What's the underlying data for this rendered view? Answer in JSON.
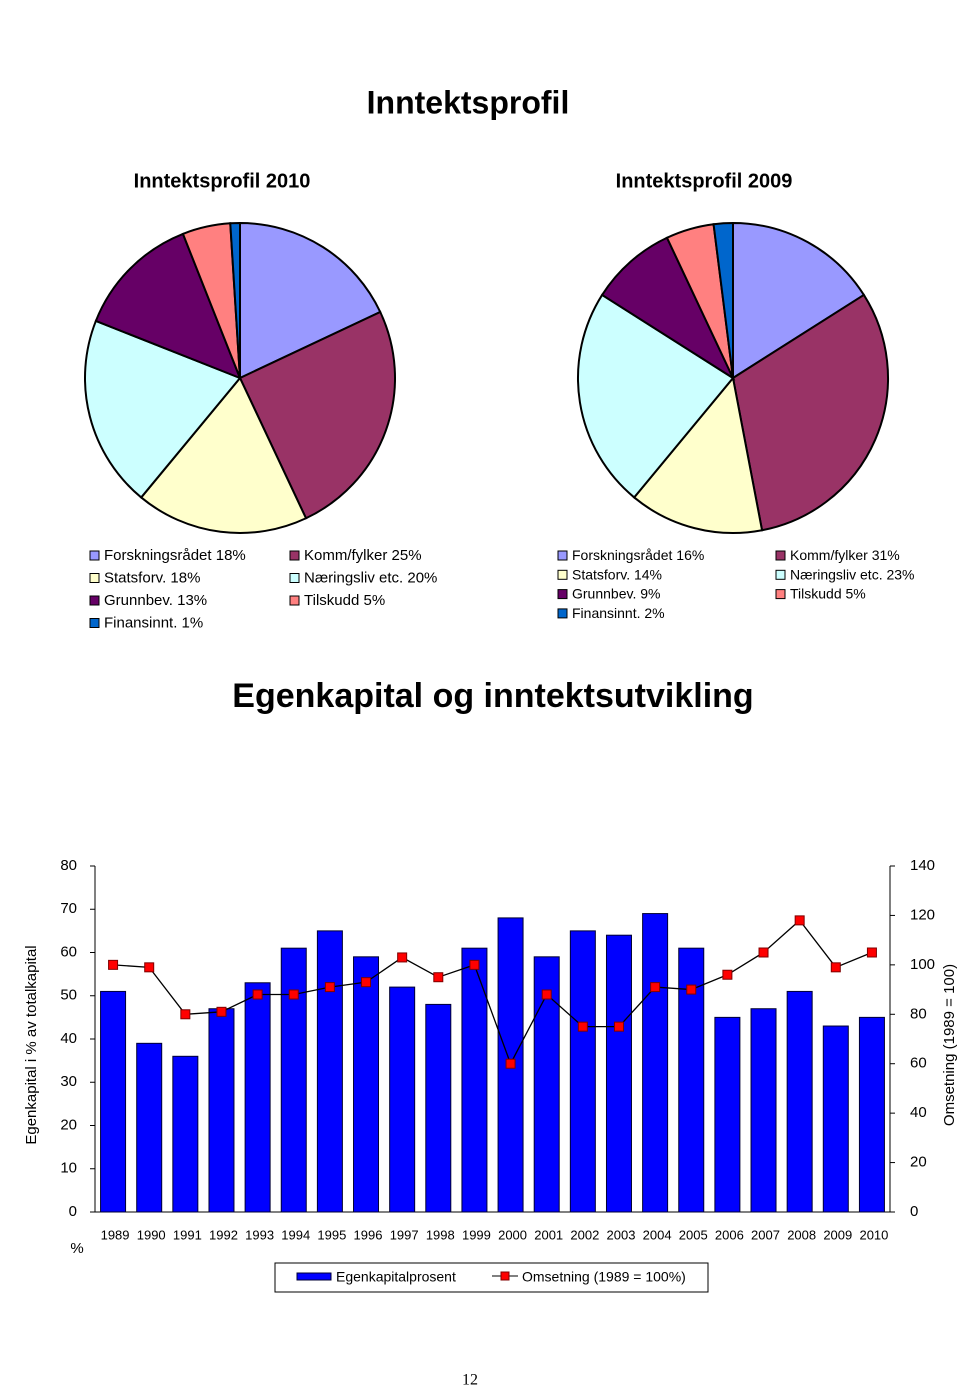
{
  "title": "Inntektsprofil",
  "page_number": "12",
  "chart_data": [
    {
      "type": "pie",
      "title": "Inntektsprofil 2010",
      "categories": [
        "Forskningsrådet",
        "Komm/fylker",
        "Statsforv.",
        "Næringsliv etc.",
        "Grunnbev.",
        "Tilskudd",
        "Finansinnt."
      ],
      "values": [
        18,
        25,
        18,
        20,
        13,
        5,
        1
      ],
      "value_labels": [
        "18%",
        "25%",
        "18%",
        "20%",
        "13%",
        "5%",
        "1%"
      ],
      "colors": [
        "#9999ff",
        "#993366",
        "#ffffcc",
        "#ccffff",
        "#660066",
        "#ff8080",
        "#0066cc"
      ]
    },
    {
      "type": "pie",
      "title": "Inntektsprofil 2009",
      "categories": [
        "Forskningsrådet",
        "Komm/fylker",
        "Statsforv.",
        "Næringsliv etc.",
        "Grunnbev.",
        "Tilskudd",
        "Finansinnt."
      ],
      "values": [
        16,
        31,
        14,
        23,
        9,
        5,
        2
      ],
      "value_labels": [
        "16%",
        "31%",
        "14%",
        "23%",
        "9%",
        "5%",
        "2%"
      ],
      "colors": [
        "#9999ff",
        "#993366",
        "#ffffcc",
        "#ccffff",
        "#660066",
        "#ff8080",
        "#0066cc"
      ]
    },
    {
      "type": "combo",
      "title": "Egenkapital og inntektsutvikling",
      "ylabel": "Egenkapital i % av totalkapital",
      "y_unit": "%",
      "y2label": "Omsetning (1989 = 100)",
      "categories": [
        "1989",
        "1990",
        "1991",
        "1992",
        "1993",
        "1994",
        "1995",
        "1996",
        "1997",
        "1998",
        "1999",
        "2000",
        "2001",
        "2002",
        "2003",
        "2004",
        "2005",
        "2006",
        "2007",
        "2008",
        "2009",
        "2010"
      ],
      "series": [
        {
          "name": "Egenkapitalprosent",
          "kind": "bar",
          "color": "#0000ff",
          "values": [
            51,
            39,
            36,
            47,
            53,
            61,
            65,
            59,
            52,
            48,
            61,
            68,
            59,
            65,
            64,
            69,
            61,
            45,
            47,
            51,
            43,
            45
          ]
        },
        {
          "name": "Omsetning (1989 = 100%)",
          "kind": "line",
          "axis": "y2",
          "color": "#ff0000",
          "values": [
            100,
            99,
            80,
            81,
            88,
            88,
            91,
            93,
            103,
            95,
            100,
            60,
            88,
            75,
            75,
            91,
            90,
            96,
            105,
            118,
            99,
            105
          ]
        }
      ],
      "ylim": [
        0,
        80
      ],
      "yticks": [
        0,
        10,
        20,
        30,
        40,
        50,
        60,
        70,
        80
      ],
      "y2lim": [
        0,
        140
      ],
      "y2ticks": [
        0,
        20,
        40,
        60,
        80,
        100,
        120,
        140
      ]
    }
  ]
}
